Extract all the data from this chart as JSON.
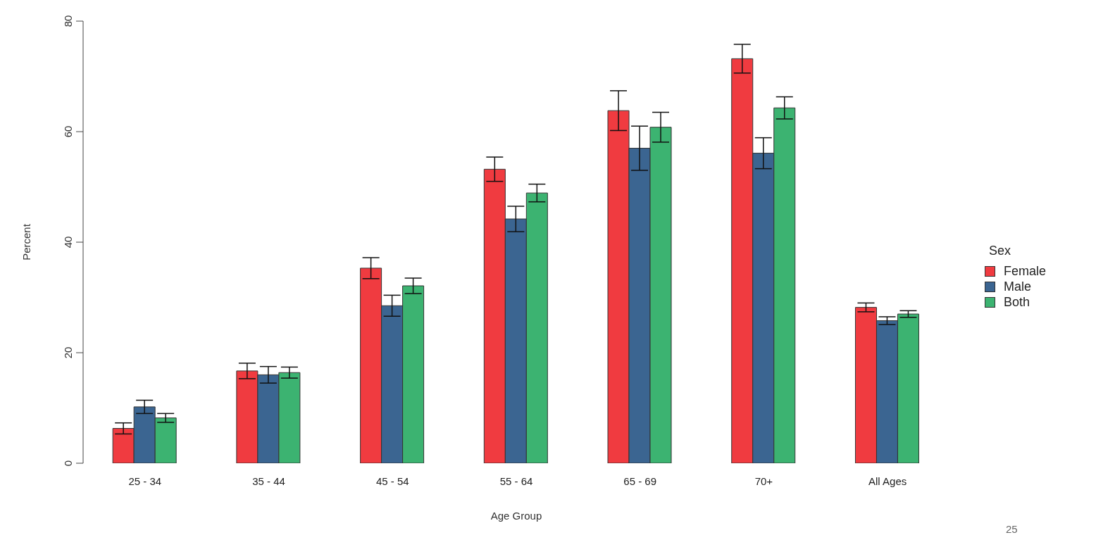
{
  "chart_data": {
    "type": "bar",
    "xlabel": "Age Group",
    "ylabel": "Percent",
    "legend_title": "Sex",
    "legend": "right",
    "grid": false,
    "categories": [
      "25 - 34",
      "35 - 44",
      "45 - 54",
      "55 - 64",
      "65 - 69",
      "70+",
      "All Ages"
    ],
    "series": [
      {
        "name": "Female",
        "color": "#f03b40",
        "values": [
          6.3,
          16.7,
          35.3,
          53.2,
          63.8,
          73.2,
          28.2
        ],
        "errors": [
          1.0,
          1.4,
          1.9,
          2.2,
          3.6,
          2.6,
          0.8
        ]
      },
      {
        "name": "Male",
        "color": "#3b6591",
        "values": [
          10.2,
          16.0,
          28.5,
          44.2,
          57.0,
          56.1,
          25.8
        ],
        "errors": [
          1.2,
          1.5,
          1.9,
          2.3,
          4.0,
          2.8,
          0.7
        ]
      },
      {
        "name": "Both",
        "color": "#3cb371",
        "values": [
          8.2,
          16.4,
          32.1,
          48.9,
          60.8,
          64.3,
          27.0
        ],
        "errors": [
          0.8,
          1.0,
          1.4,
          1.6,
          2.7,
          2.0,
          0.6
        ]
      }
    ],
    "ylim": [
      0,
      80
    ],
    "yticks": [
      0,
      20,
      40,
      60,
      80
    ],
    "annotations": [
      "25"
    ]
  }
}
